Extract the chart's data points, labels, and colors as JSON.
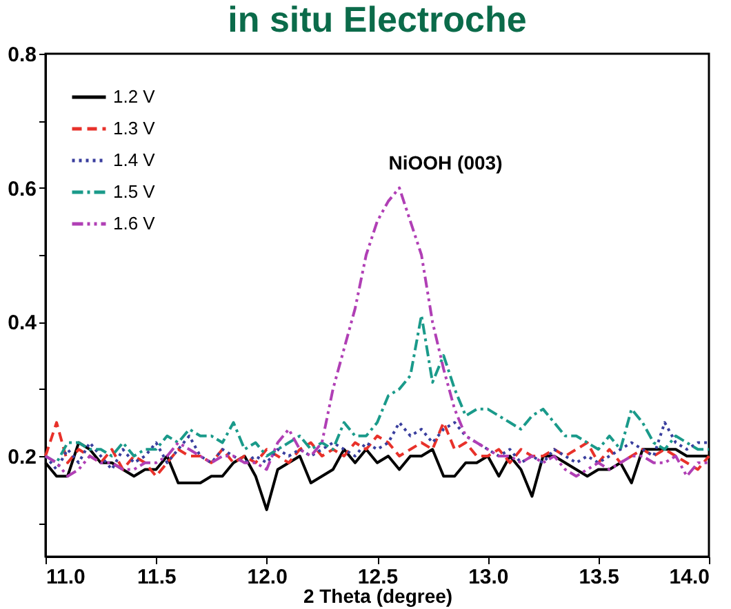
{
  "chart_data": {
    "type": "line",
    "title": "in situ Electroche",
    "xlabel": "2 Theta (degree)",
    "x": [
      11.0,
      11.05,
      11.1,
      11.15,
      11.2,
      11.25,
      11.3,
      11.35,
      11.4,
      11.45,
      11.5,
      11.55,
      11.6,
      11.65,
      11.7,
      11.75,
      11.8,
      11.85,
      11.9,
      11.95,
      12.0,
      12.05,
      12.1,
      12.15,
      12.2,
      12.25,
      12.3,
      12.35,
      12.4,
      12.45,
      12.5,
      12.55,
      12.6,
      12.65,
      12.7,
      12.75,
      12.8,
      12.85,
      12.9,
      12.95,
      13.0,
      13.05,
      13.1,
      13.15,
      13.2,
      13.25,
      13.3,
      13.35,
      13.4,
      13.45,
      13.5,
      13.55,
      13.6,
      13.65,
      13.7,
      13.75,
      13.8,
      13.85,
      13.9,
      13.95,
      14.0
    ],
    "series": [
      {
        "name": "1.2 V",
        "color": "#000000",
        "line_style": "solid",
        "values": [
          0.19,
          0.17,
          0.17,
          0.22,
          0.21,
          0.19,
          0.19,
          0.18,
          0.17,
          0.18,
          0.18,
          0.2,
          0.16,
          0.16,
          0.16,
          0.17,
          0.17,
          0.19,
          0.2,
          0.17,
          0.12,
          0.18,
          0.19,
          0.2,
          0.16,
          0.17,
          0.18,
          0.21,
          0.19,
          0.21,
          0.19,
          0.2,
          0.18,
          0.2,
          0.2,
          0.21,
          0.17,
          0.17,
          0.19,
          0.19,
          0.2,
          0.17,
          0.2,
          0.18,
          0.14,
          0.2,
          0.2,
          0.19,
          0.18,
          0.17,
          0.18,
          0.18,
          0.19,
          0.16,
          0.21,
          0.21,
          0.21,
          0.21,
          0.2,
          0.2,
          0.2
        ]
      },
      {
        "name": "1.3 V",
        "color": "#e8312a",
        "line_style": "dashed",
        "values": [
          0.2,
          0.25,
          0.19,
          0.21,
          0.2,
          0.19,
          0.21,
          0.18,
          0.2,
          0.19,
          0.17,
          0.19,
          0.21,
          0.2,
          0.2,
          0.19,
          0.21,
          0.19,
          0.2,
          0.19,
          0.21,
          0.2,
          0.19,
          0.21,
          0.22,
          0.2,
          0.21,
          0.2,
          0.22,
          0.21,
          0.23,
          0.22,
          0.2,
          0.21,
          0.22,
          0.21,
          0.25,
          0.21,
          0.22,
          0.2,
          0.2,
          0.21,
          0.19,
          0.21,
          0.2,
          0.2,
          0.21,
          0.2,
          0.21,
          0.22,
          0.19,
          0.21,
          0.19,
          0.2,
          0.21,
          0.2,
          0.21,
          0.2,
          0.19,
          0.18,
          0.2
        ]
      },
      {
        "name": "1.4 V",
        "color": "#3a3f9e",
        "line_style": "dotted",
        "values": [
          0.2,
          0.18,
          0.21,
          0.19,
          0.22,
          0.2,
          0.18,
          0.21,
          0.19,
          0.2,
          0.22,
          0.19,
          0.21,
          0.23,
          0.2,
          0.19,
          0.21,
          0.2,
          0.19,
          0.2,
          0.19,
          0.21,
          0.2,
          0.21,
          0.2,
          0.21,
          0.22,
          0.21,
          0.2,
          0.22,
          0.21,
          0.22,
          0.25,
          0.23,
          0.24,
          0.22,
          0.24,
          0.25,
          0.23,
          0.22,
          0.21,
          0.2,
          0.21,
          0.19,
          0.2,
          0.19,
          0.21,
          0.2,
          0.19,
          0.2,
          0.19,
          0.2,
          0.21,
          0.22,
          0.21,
          0.2,
          0.25,
          0.22,
          0.21,
          0.22,
          0.22
        ]
      },
      {
        "name": "1.5 V",
        "color": "#1a9a8a",
        "line_style": "dashdot",
        "values": [
          0.2,
          0.19,
          0.22,
          0.22,
          0.21,
          0.21,
          0.2,
          0.22,
          0.2,
          0.21,
          0.21,
          0.23,
          0.22,
          0.24,
          0.23,
          0.23,
          0.22,
          0.25,
          0.21,
          0.22,
          0.2,
          0.21,
          0.22,
          0.23,
          0.21,
          0.22,
          0.21,
          0.25,
          0.23,
          0.23,
          0.25,
          0.29,
          0.3,
          0.32,
          0.41,
          0.31,
          0.35,
          0.3,
          0.26,
          0.27,
          0.27,
          0.26,
          0.25,
          0.24,
          0.26,
          0.27,
          0.25,
          0.23,
          0.23,
          0.22,
          0.21,
          0.23,
          0.21,
          0.27,
          0.25,
          0.22,
          0.21,
          0.23,
          0.22,
          0.21,
          0.21
        ]
      },
      {
        "name": "1.6 V",
        "color": "#b03fb5",
        "line_style": "dashdotdot",
        "values": [
          0.2,
          0.19,
          0.17,
          0.18,
          0.2,
          0.19,
          0.19,
          0.18,
          0.18,
          0.19,
          0.19,
          0.2,
          0.22,
          0.21,
          0.2,
          0.19,
          0.2,
          0.2,
          0.19,
          0.19,
          0.18,
          0.22,
          0.24,
          0.21,
          0.2,
          0.22,
          0.3,
          0.36,
          0.42,
          0.5,
          0.55,
          0.58,
          0.6,
          0.55,
          0.5,
          0.4,
          0.33,
          0.27,
          0.23,
          0.22,
          0.21,
          0.2,
          0.2,
          0.19,
          0.2,
          0.19,
          0.2,
          0.18,
          0.17,
          0.18,
          0.19,
          0.18,
          0.19,
          0.2,
          0.2,
          0.19,
          0.19,
          0.2,
          0.17,
          0.19,
          0.19
        ]
      }
    ],
    "xlim": [
      11.0,
      14.0
    ],
    "xticks": [
      {
        "value": 11.0,
        "label": "11.0"
      },
      11.5,
      {
        "value": 12.0,
        "label": "12.0"
      },
      12.5,
      {
        "value": 13.0,
        "label": "13.0"
      },
      13.5,
      {
        "value": 14.0,
        "label": "14.0"
      }
    ],
    "ylim": [
      0.05,
      0.8
    ],
    "yticks": [
      {
        "value": 0.1,
        "label": null
      },
      0.2,
      {
        "value": 0.3,
        "label": null
      },
      0.4,
      {
        "value": 0.5,
        "label": null
      },
      0.6,
      {
        "value": 0.7,
        "label": null
      },
      0.8
    ],
    "annotations": [
      "NiOOH (003)"
    ],
    "grid": false,
    "legend": "top left",
    "marker": "none"
  }
}
